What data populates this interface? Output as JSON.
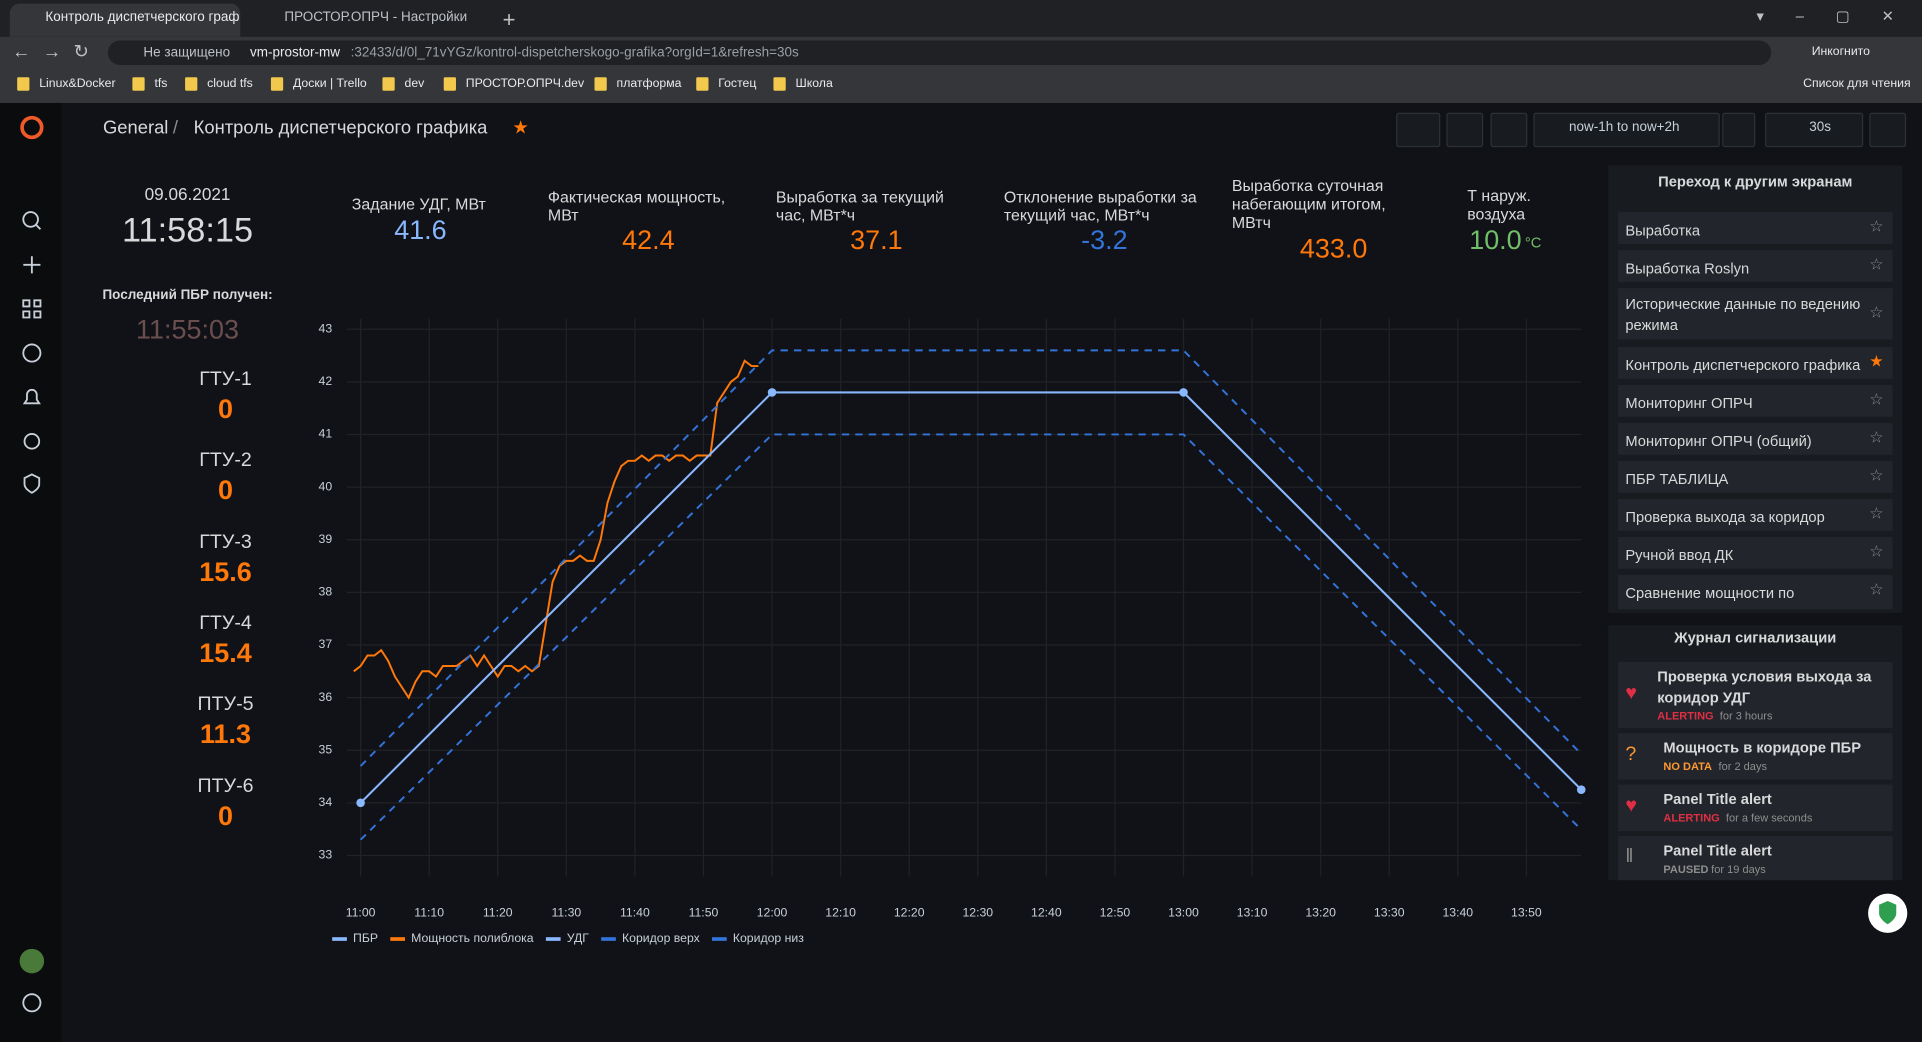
{
  "browser": {
    "tabs": [
      "Контроль диспетчерского граф",
      "ПРОСТОР.ОПРЧ - Настройки"
    ],
    "security": "Не защищено",
    "url_host": "vm-prostor-mw",
    "url_path": ":32433/d/0l_71vYGz/kontrol-dispetcherskogo-grafika?orgId=1&refresh=30s",
    "profile": "Инкогнито",
    "bookmarks": [
      "Linux&Docker",
      "tfs",
      "cloud tfs",
      "Доски | Trello",
      "dev",
      "ПРОСТОР.ОПРЧ.dev",
      "платформа",
      "Гостец",
      "Школа"
    ],
    "reading_list": "Список для чтения"
  },
  "header": {
    "folder": "General",
    "separator": "/",
    "title": "Контроль диспетчерского графика",
    "time_range": "now-1h to now+2h",
    "refresh": "30s"
  },
  "clock": {
    "date": "09.06.2021",
    "time": "11:58:15",
    "last_label": "Последний ПБР получен:",
    "last_time": "11:55:03"
  },
  "units": [
    {
      "name": "ГТУ-1",
      "value": "0"
    },
    {
      "name": "ГТУ-2",
      "value": "0"
    },
    {
      "name": "ГТУ-3",
      "value": "15.6"
    },
    {
      "name": "ГТУ-4",
      "value": "15.4"
    },
    {
      "name": "ПТУ-5",
      "value": "11.3"
    },
    {
      "name": "ПТУ-6",
      "value": "0"
    }
  ],
  "stats": [
    {
      "label": "Задание УДГ, МВт",
      "value": "41.6",
      "color": "#8ab8ff"
    },
    {
      "label": "Фактическая мощность, МВт",
      "value": "42.4",
      "color": "#ff780a"
    },
    {
      "label": "Выработка за текущий час, МВт*ч",
      "value": "37.1",
      "color": "#ff780a"
    },
    {
      "label": "Отклонение выработки за текущий час, МВт*ч",
      "value": "-3.2",
      "color": "#3274d9"
    },
    {
      "label": "Выработка суточная набегающим итогом, МВтч",
      "value": "433.0",
      "color": "#ff780a"
    },
    {
      "label": "Т наруж. воздуха",
      "value": "10.0",
      "unit": "°C",
      "color": "#73bf69"
    }
  ],
  "links": {
    "title": "Переход к другим экранам",
    "items": [
      "Выработка",
      "Выработка Roslyn",
      "Исторические данные по ведению режима",
      "Контроль диспетчерского графика",
      "Мониторинг ОПРЧ",
      "Мониторинг ОПРЧ (общий)",
      "ПБР ТАБЛИЦА",
      "Проверка выхода за коридор",
      "Ручной ввод ДК",
      "Сравнение мощности по"
    ]
  },
  "alerts": {
    "title": "Журнал сигнализации",
    "items": [
      {
        "name": "Проверка условия выхода за коридор УДГ",
        "state": "ALERTING",
        "since": "for 3 hours"
      },
      {
        "name": "Мощность в коридоре ПБР",
        "state": "NO DATA",
        "since": "for 2 days"
      },
      {
        "name": "Panel Title alert",
        "state": "ALERTING",
        "since": "for a few seconds"
      },
      {
        "name": "Panel Title alert",
        "state": "PAUSED",
        "since": "for 19 days"
      }
    ]
  },
  "chart_data": {
    "type": "line",
    "xlim": [
      "10:58",
      "13:58"
    ],
    "xticks": [
      "11:00",
      "11:10",
      "11:20",
      "11:30",
      "11:40",
      "11:50",
      "12:00",
      "12:10",
      "12:20",
      "12:30",
      "12:40",
      "12:50",
      "13:00",
      "13:10",
      "13:20",
      "13:30",
      "13:40",
      "13:50"
    ],
    "ylim": [
      32.6,
      43.2
    ],
    "yticks": [
      33,
      34,
      35,
      36,
      37,
      38,
      39,
      40,
      41,
      42,
      43
    ],
    "grid": true,
    "series": [
      {
        "name": "ПБР",
        "color": "#8ab8ff",
        "dash": false,
        "points": true,
        "x": [
          "11:00",
          "12:00",
          "13:00",
          "13:58"
        ],
        "values": [
          34,
          41.8,
          41.8,
          34.25
        ]
      },
      {
        "name": "Мощность полиблока",
        "color": "#ff780a",
        "dash": false,
        "points": false,
        "x": [
          "10:59",
          "11:00",
          "11:01",
          "11:02",
          "11:03",
          "11:04",
          "11:05",
          "11:06",
          "11:07",
          "11:08",
          "11:09",
          "11:10",
          "11:11",
          "11:12",
          "11:13",
          "11:14",
          "11:15",
          "11:16",
          "11:17",
          "11:18",
          "11:19",
          "11:20",
          "11:21",
          "11:22",
          "11:23",
          "11:24",
          "11:25",
          "11:26",
          "11:27",
          "11:28",
          "11:29",
          "11:30",
          "11:31",
          "11:32",
          "11:33",
          "11:34",
          "11:35",
          "11:36",
          "11:37",
          "11:38",
          "11:39",
          "11:40",
          "11:41",
          "11:42",
          "11:43",
          "11:44",
          "11:45",
          "11:46",
          "11:47",
          "11:48",
          "11:49",
          "11:50",
          "11:51",
          "11:52",
          "11:53",
          "11:54",
          "11:55",
          "11:56",
          "11:57",
          "11:58"
        ],
        "values": [
          36.5,
          36.6,
          36.8,
          36.8,
          36.9,
          36.7,
          36.4,
          36.2,
          36.0,
          36.3,
          36.5,
          36.5,
          36.4,
          36.6,
          36.6,
          36.6,
          36.7,
          36.8,
          36.6,
          36.8,
          36.6,
          36.4,
          36.6,
          36.6,
          36.5,
          36.6,
          36.5,
          36.6,
          37.4,
          38.2,
          38.5,
          38.6,
          38.6,
          38.7,
          38.6,
          38.6,
          39.0,
          39.7,
          40.1,
          40.4,
          40.5,
          40.5,
          40.6,
          40.5,
          40.6,
          40.6,
          40.5,
          40.6,
          40.6,
          40.5,
          40.6,
          40.6,
          40.6,
          41.6,
          41.8,
          42.0,
          42.1,
          42.4,
          42.3,
          42.3
        ]
      },
      {
        "name": "УДГ",
        "color": "#8ab8ff",
        "dash": false,
        "points": false,
        "x": [
          "11:00",
          "12:00",
          "13:00",
          "13:58"
        ],
        "values": [
          34,
          41.8,
          41.8,
          34.25
        ]
      },
      {
        "name": "Коридор верх",
        "color": "#3274d9",
        "dash": true,
        "points": false,
        "x": [
          "11:00",
          "12:00",
          "13:00",
          "13:58"
        ],
        "values": [
          34.7,
          42.6,
          42.6,
          34.93
        ]
      },
      {
        "name": "Коридор низ",
        "color": "#3274d9",
        "dash": true,
        "points": false,
        "x": [
          "11:00",
          "12:00",
          "13:00",
          "13:58"
        ],
        "values": [
          33.3,
          41.0,
          41.0,
          33.49
        ]
      }
    ]
  }
}
